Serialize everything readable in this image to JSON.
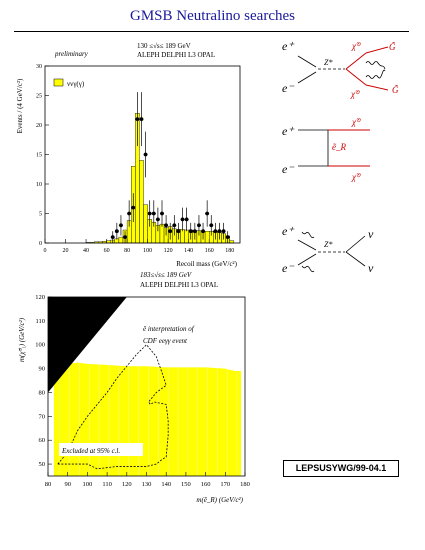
{
  "page": {
    "title": "GMSB Neutralino searches",
    "reference": "LEPSUSYWG/99-04.1"
  },
  "chart_data": [
    {
      "type": "bar",
      "label_preliminary": "preliminary",
      "energy_label": "130 ≤√s≤ 189 GeV",
      "experiments_label": "ALEPH DELPHI L3 OPAL",
      "legend": [
        {
          "name": "ννγ(γ)",
          "color": "#ffff00"
        }
      ],
      "xlabel": "Recoil mass (GeV/c²)",
      "ylabel": "Events / (4 GeV/c²)",
      "xlim": [
        0,
        190
      ],
      "ylim": [
        0,
        30
      ],
      "xticks": [
        0,
        20,
        40,
        60,
        80,
        100,
        120,
        140,
        160,
        180
      ],
      "yticks": [
        0,
        5,
        10,
        15,
        20,
        25,
        30
      ],
      "bin_width": 4,
      "mc_bins": {
        "x_start": [
          40,
          44,
          48,
          52,
          56,
          60,
          64,
          68,
          72,
          76,
          80,
          84,
          88,
          92,
          96,
          100,
          104,
          108,
          112,
          116,
          120,
          124,
          128,
          132,
          136,
          140,
          144,
          148,
          152,
          156,
          160,
          164,
          168,
          172,
          176,
          180
        ],
        "values": [
          0.1,
          0.1,
          0.2,
          0.2,
          0.3,
          0.4,
          0.5,
          0.7,
          1.0,
          2.2,
          3.8,
          13.0,
          22.0,
          14.0,
          6.5,
          4.0,
          3.5,
          3.0,
          3.2,
          2.6,
          2.8,
          2.4,
          2.3,
          2.3,
          2.2,
          2.2,
          2.1,
          2.1,
          2.0,
          2.0,
          2.0,
          1.9,
          1.8,
          1.6,
          1.2,
          0.4
        ]
      },
      "data_points": {
        "x": [
          66,
          70,
          74,
          78,
          82,
          86,
          90,
          94,
          98,
          102,
          106,
          110,
          114,
          118,
          122,
          126,
          130,
          134,
          138,
          142,
          146,
          150,
          154,
          158,
          162,
          166,
          170,
          174,
          178
        ],
        "y": [
          1,
          2,
          3,
          1,
          5,
          6,
          21,
          21,
          15,
          5,
          5,
          4,
          5,
          3,
          2,
          3,
          2,
          4,
          4,
          2,
          2,
          3,
          2,
          5,
          3,
          2,
          2,
          2,
          1
        ]
      }
    },
    {
      "type": "area",
      "energy_label": "183≤√s≤ 189 GeV",
      "experiments_label": "ALEPH DELPHI L3 OPAL",
      "annotation_1": "ẽ interpretation of",
      "annotation_2": "CDF eeγγ event",
      "excluded_label": "Excluded at 95% c.l.",
      "xlabel": "m(ẽ_R) (GeV/c²)",
      "ylabel": "m(χ̃⁰₁) (GeV/c²)",
      "xlim": [
        80,
        180
      ],
      "ylim": [
        45,
        120
      ],
      "xticks": [
        80,
        90,
        100,
        110,
        120,
        130,
        140,
        150,
        160,
        170,
        180
      ],
      "yticks": [
        50,
        60,
        70,
        80,
        90,
        100,
        110,
        120
      ],
      "excluded_ceiling": {
        "x": [
          83,
          83.5,
          84,
          85,
          90,
          95,
          100,
          110,
          120,
          130,
          140,
          150,
          160,
          170,
          172,
          175,
          178
        ],
        "y": [
          83,
          85,
          88,
          90,
          92,
          92.5,
          92,
          91.5,
          91,
          91,
          90.5,
          90.5,
          90.5,
          90,
          89.5,
          89,
          89
        ]
      },
      "kinematic_boundary": {
        "color": "#000000",
        "description_not_printed": false
      },
      "cdf_contour": {
        "x": [
          85,
          90,
          95,
          100,
          110,
          115,
          125,
          130,
          135,
          138,
          140,
          135,
          133,
          131,
          132,
          134,
          140,
          141,
          141,
          140,
          138,
          135,
          130,
          125,
          115,
          105,
          100,
          95,
          90,
          85
        ],
        "y": [
          50,
          55,
          64,
          70,
          80,
          86,
          96,
          100,
          95,
          88,
          83,
          80,
          78,
          76,
          75,
          76,
          75,
          68,
          62,
          53,
          52,
          50,
          49,
          49,
          49,
          48,
          50,
          50,
          50,
          50
        ]
      }
    }
  ],
  "diagrams": [
    {
      "incoming": [
        "e⁺",
        "e⁻"
      ],
      "propagator": "Z*",
      "outgoing": [
        "χ̃⁰",
        "χ̃⁰"
      ],
      "photons": [
        "γ",
        "γ"
      ],
      "gravitinos": [
        "G̃",
        "G̃"
      ]
    },
    {
      "incoming": [
        "e⁺",
        "e⁻"
      ],
      "propagator": "ẽ_R",
      "outgoing": [
        "χ̃⁰",
        "χ̃⁰"
      ]
    },
    {
      "incoming": [
        "e⁺",
        "e⁻"
      ],
      "propagator": "Z*",
      "outgoing": [
        "ν",
        "ν"
      ]
    }
  ],
  "colors": {
    "title": "#1a1a9a",
    "fill": "#ffff00",
    "particle": "#cc0000"
  }
}
